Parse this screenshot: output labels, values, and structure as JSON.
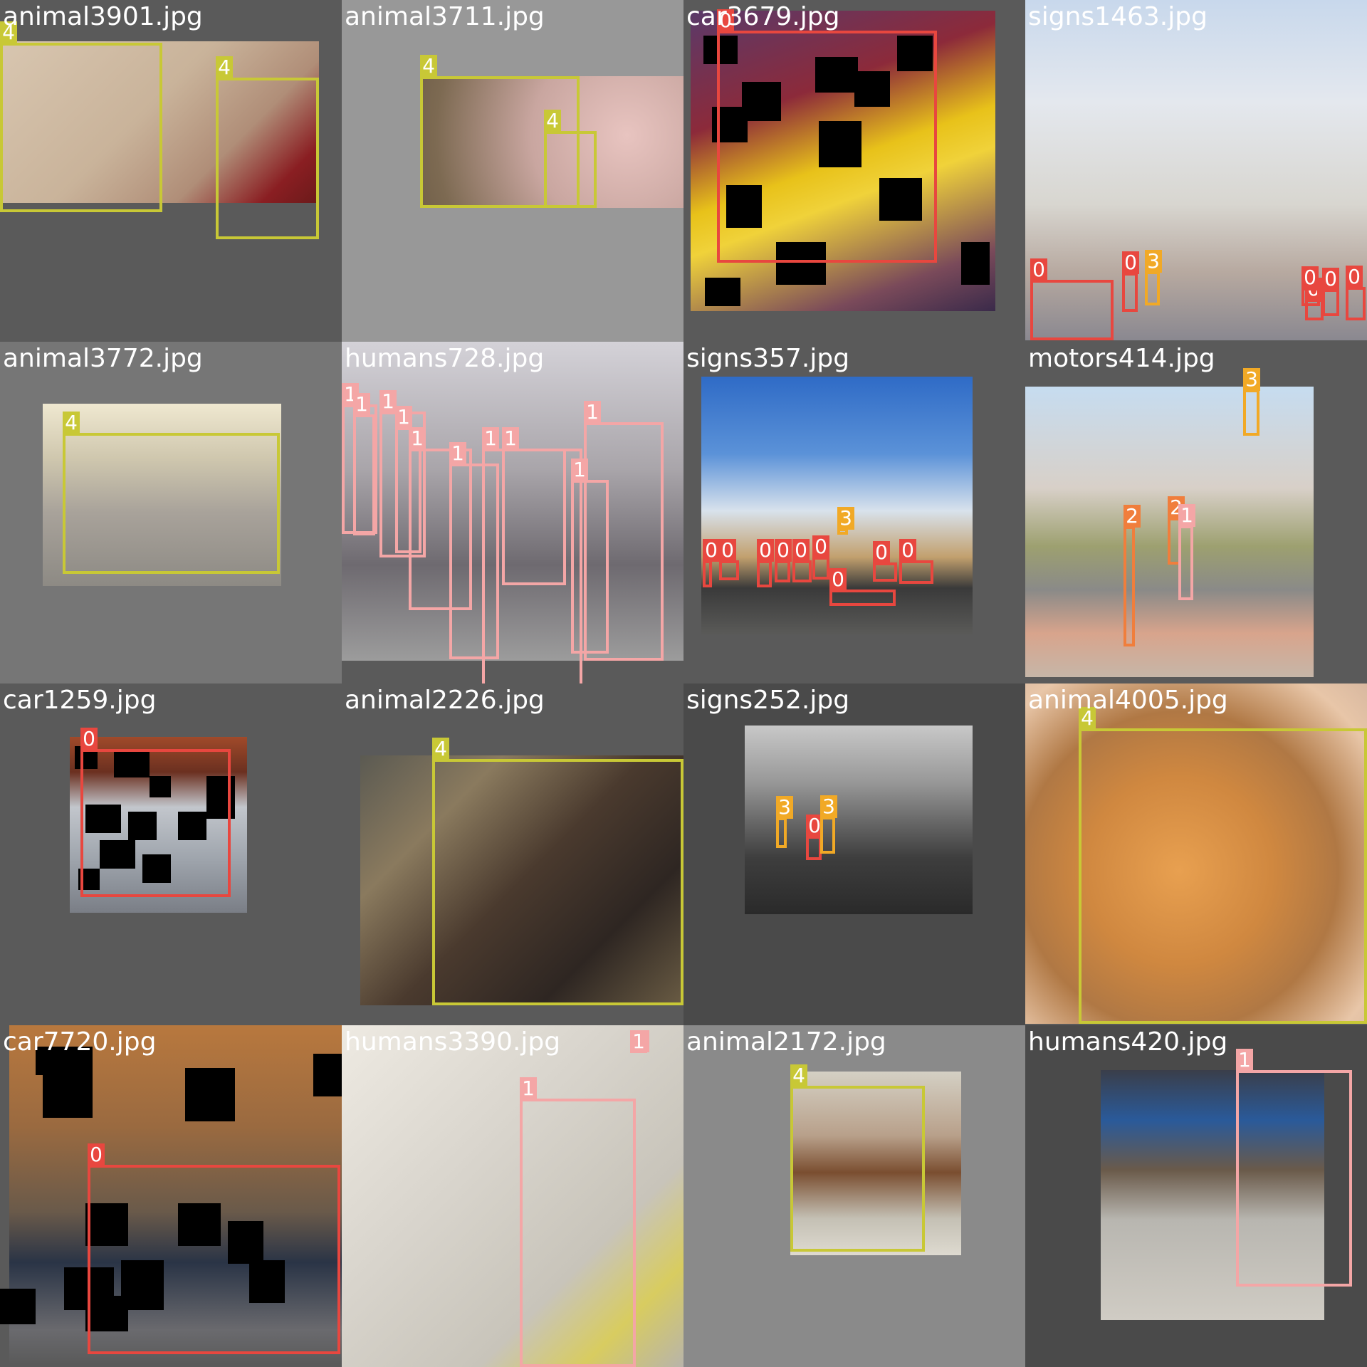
{
  "class_colors": {
    "0": "#e8473f",
    "1": "#f4a6a6",
    "2": "#f07e3c",
    "3": "#f1a926",
    "4": "#c8c836"
  },
  "tiles": [
    {
      "filename": "animal3901.jpg",
      "bg": "#5a5a5a",
      "scene": "rabbits",
      "labels": [
        "4",
        "4"
      ],
      "masks": 0
    },
    {
      "filename": "animal3711.jpg",
      "bg": "#989898",
      "scene": "pigs",
      "labels": [
        "4",
        "4"
      ],
      "masks": 0
    },
    {
      "filename": "car3679.jpg",
      "bg": "#5a5a5a",
      "scene": "yellow car",
      "labels": [
        "0"
      ],
      "masks": 12
    },
    {
      "filename": "signs1463.jpg",
      "bg": "#5a5a5a",
      "scene": "city street",
      "labels": [
        "0",
        "0",
        "3",
        "0",
        "0",
        "0",
        "0"
      ],
      "masks": 0
    },
    {
      "filename": "animal3772.jpg",
      "bg": "#767676",
      "scene": "spotted pig",
      "labels": [
        "4"
      ],
      "masks": 0
    },
    {
      "filename": "humans728.jpg",
      "bg": "#5a5a5a",
      "scene": "crowd on crosswalk",
      "labels": [
        "1",
        "1",
        "1",
        "1",
        "1",
        "1",
        "1",
        "1",
        "1",
        "1"
      ],
      "masks": 0
    },
    {
      "filename": "signs357.jpg",
      "bg": "#5a5a5a",
      "scene": "street with buildings",
      "labels": [
        "0",
        "0",
        "0",
        "0",
        "0",
        "0",
        "3",
        "0",
        "0",
        "0"
      ],
      "masks": 0
    },
    {
      "filename": "motors414.jpg",
      "bg": "#5a5a5a",
      "scene": "road with motorbikes",
      "labels": [
        "3",
        "2",
        "2",
        "1"
      ],
      "masks": 0
    },
    {
      "filename": "car1259.jpg",
      "bg": "#5a5a5a",
      "scene": "silver car",
      "labels": [
        "0"
      ],
      "masks": 10
    },
    {
      "filename": "animal2226.jpg",
      "bg": "#5a5a5a",
      "scene": "horse",
      "labels": [
        "4"
      ],
      "masks": 0
    },
    {
      "filename": "signs252.jpg",
      "bg": "#4a4a4a",
      "scene": "road cloudy",
      "labels": [
        "3",
        "0",
        "3"
      ],
      "masks": 0
    },
    {
      "filename": "animal4005.jpg",
      "bg": "#5a5a5a",
      "scene": "orange rabbit",
      "labels": [
        "4"
      ],
      "masks": 0
    },
    {
      "filename": "car7720.jpg",
      "bg": "#5a5a5a",
      "scene": "blue beetle car",
      "labels": [
        "0"
      ],
      "masks": 12
    },
    {
      "filename": "humans3390.jpg",
      "bg": "#e8e4dc",
      "scene": "man on phone",
      "labels": [
        "1",
        "1"
      ],
      "masks": 0
    },
    {
      "filename": "animal2172.jpg",
      "bg": "#8a8a8a",
      "scene": "brown horse",
      "labels": [
        "4"
      ],
      "masks": 0
    },
    {
      "filename": "humans420.jpg",
      "bg": "#4a4a4a",
      "scene": "wheelchair on street",
      "labels": [
        "1"
      ],
      "masks": 0
    }
  ]
}
